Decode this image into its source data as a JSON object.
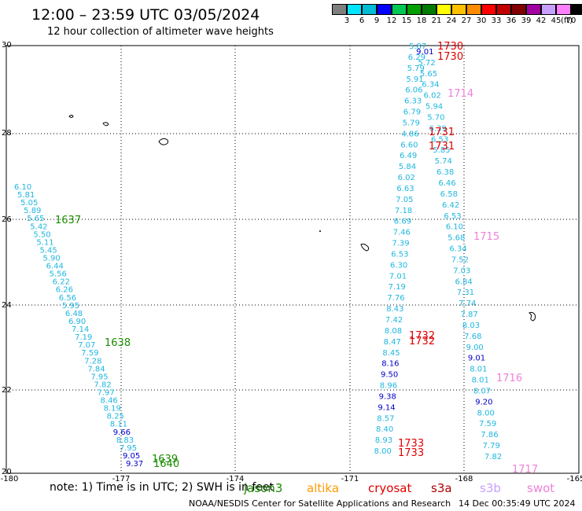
{
  "header": {
    "title": "12:00 – 23:59 UTC 03/05/2024",
    "subtitle": "12 hour collection of altimeter wave heights"
  },
  "scale": {
    "unit": "(ft)",
    "bins": [
      {
        "label": "3",
        "color": "#7f7f7f"
      },
      {
        "label": "6",
        "color": "#00e5ff"
      },
      {
        "label": "9",
        "color": "#00bcd4"
      },
      {
        "label": "12",
        "color": "#0000ff"
      },
      {
        "label": "15",
        "color": "#00c853"
      },
      {
        "label": "18",
        "color": "#00a000"
      },
      {
        "label": "21",
        "color": "#007a00"
      },
      {
        "label": "24",
        "color": "#ffff00"
      },
      {
        "label": "27",
        "color": "#ffc000"
      },
      {
        "label": "30",
        "color": "#ff8c00"
      },
      {
        "label": "33",
        "color": "#ff0000"
      },
      {
        "label": "36",
        "color": "#c00000"
      },
      {
        "label": "39",
        "color": "#800000"
      },
      {
        "label": "42",
        "color": "#a000a0"
      },
      {
        "label": "45",
        "color": "#c8a0ff"
      },
      {
        "label": "70",
        "color": "#ff80ff"
      },
      {
        "label": "",
        "color": "#000000"
      }
    ]
  },
  "axes": {
    "lon_labels": [
      "-180",
      "-177",
      "-174",
      "-171",
      "-168",
      "-165"
    ],
    "lat_labels": [
      "30",
      "28",
      "26",
      "24",
      "22",
      "20"
    ]
  },
  "map": {
    "colors": {
      "cyan": "#1fb7e0",
      "blue": "#0000c8",
      "green": "#1a8c00",
      "red": "#e00000",
      "pink": "#f080d8"
    },
    "west_track": [
      [
        "6.10",
        "cyan"
      ],
      [
        "5.81",
        "cyan"
      ],
      [
        "5.05",
        "cyan"
      ],
      [
        "5.89",
        "cyan"
      ],
      [
        "5.65",
        "cyan"
      ],
      [
        "5.42",
        "cyan"
      ],
      [
        "5.50",
        "cyan"
      ],
      [
        "5.11",
        "cyan"
      ],
      [
        "5.45",
        "cyan"
      ],
      [
        "5.90",
        "cyan"
      ],
      [
        "6.44",
        "cyan"
      ],
      [
        "5.56",
        "cyan"
      ],
      [
        "6.22",
        "cyan"
      ],
      [
        "6.26",
        "cyan"
      ],
      [
        "6.56",
        "cyan"
      ],
      [
        "5.95",
        "cyan"
      ],
      [
        "6.48",
        "cyan"
      ],
      [
        "6.90",
        "cyan"
      ],
      [
        "7.14",
        "cyan"
      ],
      [
        "7.19",
        "cyan"
      ],
      [
        "7.07",
        "cyan"
      ],
      [
        "7.59",
        "cyan"
      ],
      [
        "7.28",
        "cyan"
      ],
      [
        "7.84",
        "cyan"
      ],
      [
        "7.95",
        "cyan"
      ],
      [
        "7.82",
        "cyan"
      ],
      [
        "7.97",
        "cyan"
      ],
      [
        "8.46",
        "cyan"
      ],
      [
        "8.19",
        "cyan"
      ],
      [
        "8.25",
        "cyan"
      ],
      [
        "8.11",
        "cyan"
      ],
      [
        "9.66",
        "blue"
      ],
      [
        "8.83",
        "cyan"
      ],
      [
        "7.95",
        "cyan"
      ],
      [
        "9.05",
        "blue"
      ],
      [
        "9.37",
        "blue"
      ]
    ],
    "middle_track": [
      [
        "5.87",
        "cyan"
      ],
      [
        "9.01",
        "blue"
      ],
      [
        "6.29",
        "cyan"
      ],
      [
        "5.72",
        "cyan"
      ],
      [
        "5.79",
        "cyan"
      ],
      [
        "5.65",
        "cyan"
      ],
      [
        "5.91",
        "cyan"
      ],
      [
        "6.34",
        "cyan"
      ],
      [
        "6.06",
        "cyan"
      ],
      [
        "6.02",
        "cyan"
      ],
      [
        "6.33",
        "cyan"
      ],
      [
        "5.94",
        "cyan"
      ],
      [
        "6.79",
        "cyan"
      ],
      [
        "5.70",
        "cyan"
      ],
      [
        "5.79",
        "cyan"
      ],
      [
        "6.39",
        "cyan"
      ],
      [
        "4.86",
        "cyan"
      ],
      [
        "6.53",
        "cyan"
      ],
      [
        "6.60",
        "cyan"
      ],
      [
        "5.85",
        "cyan"
      ],
      [
        "6.49",
        "cyan"
      ],
      [
        "5.74",
        "cyan"
      ],
      [
        "5.84",
        "cyan"
      ],
      [
        "6.38",
        "cyan"
      ],
      [
        "6.02",
        "cyan"
      ],
      [
        "6.46",
        "cyan"
      ],
      [
        "6.63",
        "cyan"
      ],
      [
        "6.58",
        "cyan"
      ],
      [
        "7.05",
        "cyan"
      ],
      [
        "6.42",
        "cyan"
      ],
      [
        "7.18",
        "cyan"
      ],
      [
        "6.53",
        "cyan"
      ],
      [
        "6.69",
        "cyan"
      ],
      [
        "6.10",
        "cyan"
      ],
      [
        "7.46",
        "cyan"
      ],
      [
        "5.68",
        "cyan"
      ],
      [
        "7.39",
        "cyan"
      ],
      [
        "6.34",
        "cyan"
      ],
      [
        "6.53",
        "cyan"
      ],
      [
        "7.52",
        "cyan"
      ],
      [
        "6.30",
        "cyan"
      ],
      [
        "7.03",
        "cyan"
      ],
      [
        "7.01",
        "cyan"
      ],
      [
        "6.84",
        "cyan"
      ],
      [
        "7.19",
        "cyan"
      ],
      [
        "7.31",
        "cyan"
      ],
      [
        "7.76",
        "cyan"
      ],
      [
        "7.74",
        "cyan"
      ],
      [
        "8.43",
        "cyan"
      ],
      [
        "7.87",
        "cyan"
      ],
      [
        "7.42",
        "cyan"
      ],
      [
        "8.03",
        "cyan"
      ],
      [
        "8.08",
        "cyan"
      ],
      [
        "7.68",
        "cyan"
      ],
      [
        "8.47",
        "cyan"
      ],
      [
        "9.00",
        "cyan"
      ],
      [
        "8.45",
        "cyan"
      ],
      [
        "9.01",
        "blue"
      ],
      [
        "8.16",
        "blue"
      ],
      [
        "8.01",
        "cyan"
      ],
      [
        "9.50",
        "blue"
      ],
      [
        "8.01",
        "cyan"
      ],
      [
        "8.96",
        "cyan"
      ],
      [
        "8.07",
        "cyan"
      ],
      [
        "9.38",
        "blue"
      ],
      [
        "9.20",
        "blue"
      ],
      [
        "9.14",
        "blue"
      ],
      [
        "8.00",
        "cyan"
      ],
      [
        "8.57",
        "cyan"
      ],
      [
        "7.59",
        "cyan"
      ],
      [
        "8.40",
        "cyan"
      ],
      [
        "7.86",
        "cyan"
      ],
      [
        "8.93",
        "cyan"
      ],
      [
        "7.79",
        "cyan"
      ],
      [
        "8.00",
        "cyan"
      ],
      [
        "7.82",
        "cyan"
      ]
    ],
    "time_tags": [
      {
        "text": "1637",
        "color": "green"
      },
      {
        "text": "1638",
        "color": "green"
      },
      {
        "text": "1639",
        "color": "green"
      },
      {
        "text": "1640",
        "color": "green"
      },
      {
        "text": "1730",
        "color": "red"
      },
      {
        "text": "1730",
        "color": "red"
      },
      {
        "text": "1714",
        "color": "pink"
      },
      {
        "text": "1731",
        "color": "red"
      },
      {
        "text": "1731",
        "color": "red"
      },
      {
        "text": "1715",
        "color": "pink"
      },
      {
        "text": "1732",
        "color": "red"
      },
      {
        "text": "1732",
        "color": "red"
      },
      {
        "text": "1716",
        "color": "pink"
      },
      {
        "text": "1733",
        "color": "red"
      },
      {
        "text": "1733",
        "color": "red"
      },
      {
        "text": "1717",
        "color": "pink"
      }
    ]
  },
  "footer": {
    "note": "note:  1) Time is in UTC;  2) SWH is in feet",
    "satellites": [
      {
        "name": "jason3",
        "color": "#1a8c00"
      },
      {
        "name": "altika",
        "color": "#ff9a00"
      },
      {
        "name": "cryosat",
        "color": "#e00000"
      },
      {
        "name": "s3a",
        "color": "#b00000"
      },
      {
        "name": "s3b",
        "color": "#c8a0ff"
      },
      {
        "name": "swot",
        "color": "#f080d8"
      }
    ],
    "credit": "NOAA/NESDIS Center for Satellite Applications and Research",
    "timestamp": "14 Dec 00:35:49 UTC 2024"
  }
}
